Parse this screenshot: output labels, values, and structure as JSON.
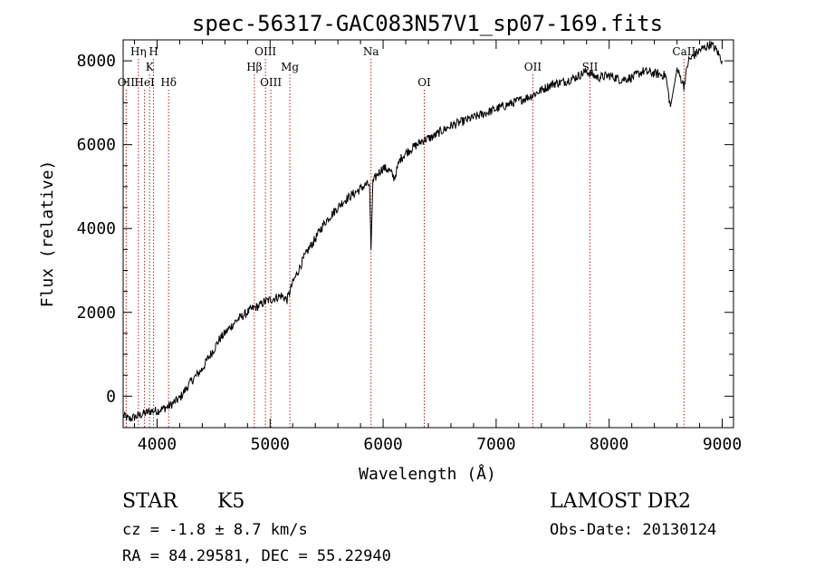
{
  "chart_data": {
    "type": "line",
    "title": "spec-56317-GAC083N57V1_sp07-169.fits",
    "xlabel": "Wavelength (Å)",
    "ylabel": "Flux (relative)",
    "xlim": [
      3700,
      9100
    ],
    "ylim": [
      -750,
      8500
    ],
    "xticks": [
      4000,
      5000,
      6000,
      7000,
      8000,
      9000
    ],
    "yticks": [
      0,
      2000,
      4000,
      6000,
      8000
    ],
    "grid": false,
    "line_color": "#000000",
    "marker_color": "#b22222",
    "series": [
      {
        "x": [
          3700,
          3750,
          3800,
          3850,
          3900,
          3950,
          4000,
          4050,
          4100,
          4150,
          4200,
          4250,
          4300,
          4350,
          4400,
          4450,
          4500,
          4550,
          4600,
          4650,
          4700,
          4750,
          4800,
          4850,
          4900,
          4950,
          5000,
          5050,
          5100,
          5150,
          5200,
          5250,
          5300,
          5350,
          5400,
          5450,
          5500,
          5550,
          5600,
          5650,
          5700,
          5750,
          5800,
          5850,
          5880,
          5893,
          5910,
          5950,
          6000,
          6050,
          6100,
          6150,
          6200,
          6250,
          6300,
          6350,
          6400,
          6450,
          6500,
          6600,
          6700,
          6800,
          6900,
          7000,
          7100,
          7200,
          7300,
          7400,
          7500,
          7600,
          7700,
          7800,
          7900,
          8000,
          8100,
          8200,
          8300,
          8400,
          8500,
          8542,
          8600,
          8662,
          8700,
          8800,
          8900,
          8950,
          9000
        ],
        "y": [
          -450,
          -550,
          -500,
          -450,
          -400,
          -350,
          -350,
          -300,
          -250,
          -150,
          -50,
          150,
          350,
          500,
          650,
          900,
          1100,
          1350,
          1500,
          1650,
          1800,
          1900,
          2000,
          2100,
          2150,
          2250,
          2300,
          2350,
          2400,
          2300,
          2700,
          3000,
          3300,
          3550,
          3750,
          4000,
          4200,
          4350,
          4500,
          4650,
          4750,
          4850,
          4950,
          5050,
          5050,
          3500,
          5100,
          5300,
          5450,
          5400,
          5200,
          5650,
          5800,
          5900,
          6000,
          6100,
          6150,
          6200,
          6300,
          6450,
          6550,
          6650,
          6750,
          6850,
          6950,
          7050,
          7150,
          7300,
          7450,
          7500,
          7600,
          7750,
          7600,
          7650,
          7550,
          7600,
          7750,
          7700,
          7650,
          6900,
          7800,
          7400,
          8000,
          8250,
          8400,
          8250,
          8000
        ]
      }
    ],
    "lines": [
      {
        "label": "OII",
        "wave": 3727,
        "row": 3
      },
      {
        "label": "Hη",
        "wave": 3835,
        "row": 1
      },
      {
        "label": "HeI",
        "wave": 3889,
        "row": 3
      },
      {
        "label": "K",
        "wave": 3934,
        "row": 2
      },
      {
        "label": "H",
        "wave": 3969,
        "row": 1
      },
      {
        "label": "Hδ",
        "wave": 4102,
        "row": 3
      },
      {
        "label": "Hβ",
        "wave": 4861,
        "row": 2
      },
      {
        "label": "OIII",
        "wave": 4959,
        "row": 1
      },
      {
        "label": "OIII",
        "wave": 5007,
        "row": 3
      },
      {
        "label": "Mg",
        "wave": 5175,
        "row": 2
      },
      {
        "label": "Na",
        "wave": 5893,
        "row": 1
      },
      {
        "label": "OI",
        "wave": 6364,
        "row": 3
      },
      {
        "label": "OII",
        "wave": 7325,
        "row": 2
      },
      {
        "label": "SII",
        "wave": 7830,
        "row": 2
      },
      {
        "label": "CaII",
        "wave": 8662,
        "row": 1
      }
    ]
  },
  "info": {
    "object_class": "STAR",
    "subclass": "K5",
    "cz": "cz = -1.8 ± 8.7 km/s",
    "coords": "RA =  84.29581, DEC =  55.22940",
    "survey": "LAMOST DR2",
    "obs_date": "Obs-Date: 20130124"
  }
}
